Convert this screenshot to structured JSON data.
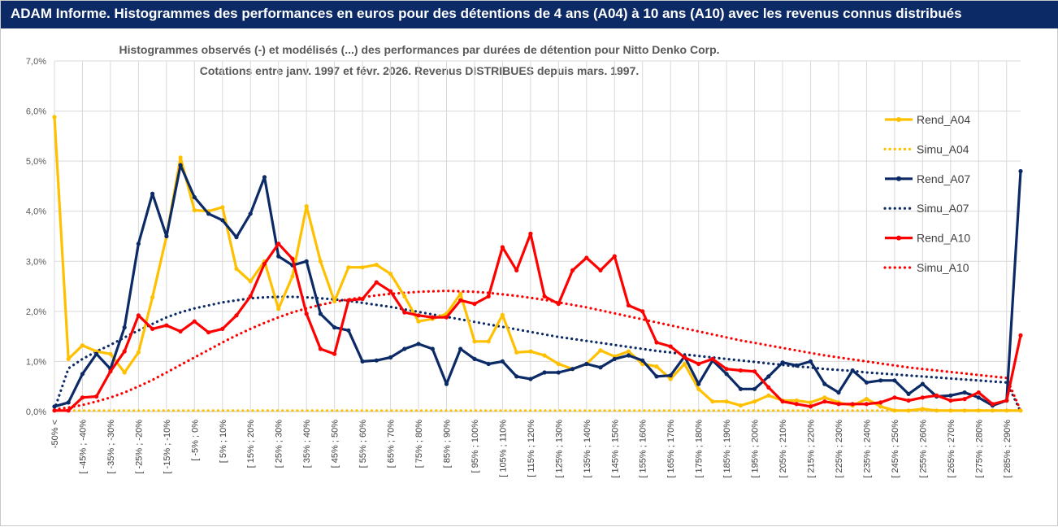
{
  "banner": {
    "title": "ADAM Informe. Histogrammes des performances en euros pour des détentions de 4 ans (A04) à 10 ans (A10) avec les revenus connus distribués"
  },
  "colors": {
    "banner_bg": "#0b2a66",
    "banner_text": "#ffffff",
    "A04": "#ffc000",
    "A07": "#0b2a66",
    "A10": "#ff0000",
    "grid": "#d9d9d9"
  },
  "chart_data": {
    "type": "line",
    "title": "Histogrammes observés (-) et modélisés (...) des performances par durées de détention pour Nitto Denko Corp.",
    "subtitle": "Cotations entre janv. 1997 et févr.  2026. Revenus DISTRIBUES depuis mars. 1997.",
    "xlabel": "",
    "ylabel": "",
    "ylim": [
      0,
      7
    ],
    "y_ticks": [
      0,
      1,
      2,
      3,
      4,
      5,
      6,
      7
    ],
    "y_tick_labels": [
      "0,0%",
      "1,0%",
      "2,0%",
      "3,0%",
      "4,0%",
      "5,0%",
      "6,0%",
      "7,0%"
    ],
    "grid": true,
    "legend_position": "top-right",
    "x_tick_labels": [
      "-50% <",
      "[ -45% ; -40%",
      "[ -35% ; -30%",
      "[ -25% ; -20%",
      "[ -15% ; -10%",
      "[ -5% ; 0%",
      "[ 5% ; 10%",
      "[ 15% ; 20%",
      "[ 25% ; 30%",
      "[ 35% ; 40%",
      "[ 45% ; 50%",
      "[ 55% ; 60%",
      "[ 65% ; 70%",
      "[ 75% ; 80%",
      "[ 85% ; 90%",
      "[ 95% ; 100%",
      "[ 105% ; 110%",
      "[ 115% ; 120%",
      "[ 125% ; 130%",
      "[ 135% ; 140%",
      "[ 145% ; 150%",
      "[ 155% ; 160%",
      "[ 165% ; 170%",
      "[ 175% ; 180%",
      "[ 185% ; 190%",
      "[ 195% ; 200%",
      "[ 205% ; 210%",
      "[ 215% ; 220%",
      "[ 225% ; 230%",
      "[ 235% ; 240%",
      "[ 245% ; 250%",
      "[ 255% ; 260%",
      "[ 265% ; 270%",
      "[ 275% ; 280%",
      "[ 285% ; 290%"
    ],
    "x_tick_label_every": 2,
    "series": [
      {
        "name": "Rend_A04",
        "kind": "observed",
        "color": "#ffc000",
        "values": [
          5.88,
          1.05,
          1.32,
          1.2,
          1.15,
          0.78,
          1.18,
          2.28,
          3.5,
          5.07,
          4.02,
          4.0,
          4.08,
          2.85,
          2.6,
          3.0,
          2.05,
          2.7,
          4.1,
          3.0,
          2.2,
          2.88,
          2.88,
          2.93,
          2.75,
          2.3,
          1.8,
          1.85,
          1.95,
          2.35,
          1.4,
          1.4,
          1.93,
          1.18,
          1.2,
          1.12,
          0.95,
          0.85,
          0.95,
          1.22,
          1.1,
          1.2,
          0.95,
          0.9,
          0.65,
          0.95,
          0.45,
          0.2,
          0.2,
          0.12,
          0.2,
          0.32,
          0.22,
          0.22,
          0.18,
          0.28,
          0.18,
          0.12,
          0.25,
          0.1,
          0.02,
          0.02,
          0.05,
          0.02,
          0.02,
          0.02,
          0.02,
          0.02,
          0.02,
          0.02
        ]
      },
      {
        "name": "Simu_A04",
        "kind": "model",
        "color": "#ffc000",
        "values": [
          0.02,
          0.02,
          0.02,
          0.02,
          0.02,
          0.02,
          0.02,
          0.02,
          0.02,
          0.02,
          0.02,
          0.02,
          0.02,
          0.02,
          0.02,
          0.02,
          0.02,
          0.02,
          0.02,
          0.02,
          0.02,
          0.02,
          0.02,
          0.02,
          0.02,
          0.02,
          0.02,
          0.02,
          0.02,
          0.02,
          0.02,
          0.02,
          0.02,
          0.02,
          0.02,
          0.02,
          0.02,
          0.02,
          0.02,
          0.02,
          0.02,
          0.02,
          0.02,
          0.02,
          0.02,
          0.02,
          0.02,
          0.02,
          0.02,
          0.02,
          0.02,
          0.02,
          0.02,
          0.02,
          0.02,
          0.02,
          0.02,
          0.02,
          0.02,
          0.02,
          0.02,
          0.02,
          0.02,
          0.02,
          0.02,
          0.02,
          0.02,
          0.02,
          0.02,
          0.02
        ]
      },
      {
        "name": "Rend_A07",
        "kind": "observed",
        "color": "#0b2a66",
        "values": [
          0.1,
          0.18,
          0.75,
          1.15,
          0.85,
          1.68,
          3.35,
          4.35,
          3.5,
          4.92,
          4.28,
          3.95,
          3.82,
          3.48,
          3.95,
          4.68,
          3.1,
          2.92,
          3.0,
          1.95,
          1.68,
          1.62,
          1.0,
          1.02,
          1.08,
          1.25,
          1.35,
          1.25,
          0.55,
          1.25,
          1.05,
          0.95,
          1.0,
          0.7,
          0.65,
          0.78,
          0.78,
          0.85,
          0.95,
          0.88,
          1.05,
          1.12,
          1.02,
          0.7,
          0.72,
          1.1,
          0.55,
          1.02,
          0.75,
          0.45,
          0.45,
          0.7,
          0.98,
          0.92,
          1.0,
          0.55,
          0.38,
          0.82,
          0.58,
          0.62,
          0.62,
          0.35,
          0.55,
          0.3,
          0.32,
          0.38,
          0.28,
          0.12,
          0.22,
          4.8
        ]
      },
      {
        "name": "Simu_A07",
        "kind": "model",
        "color": "#0b2a66",
        "values": [
          0.04,
          0.86,
          1.05,
          1.2,
          1.33,
          1.48,
          1.62,
          1.75,
          1.88,
          1.98,
          2.06,
          2.12,
          2.18,
          2.22,
          2.26,
          2.28,
          2.29,
          2.29,
          2.28,
          2.26,
          2.24,
          2.21,
          2.17,
          2.13,
          2.09,
          2.04,
          1.99,
          1.94,
          1.89,
          1.84,
          1.79,
          1.74,
          1.69,
          1.64,
          1.59,
          1.54,
          1.49,
          1.45,
          1.41,
          1.37,
          1.33,
          1.29,
          1.25,
          1.21,
          1.18,
          1.14,
          1.11,
          1.08,
          1.05,
          1.02,
          0.99,
          0.96,
          0.93,
          0.9,
          0.88,
          0.85,
          0.83,
          0.81,
          0.78,
          0.76,
          0.74,
          0.72,
          0.7,
          0.68,
          0.66,
          0.64,
          0.62,
          0.6,
          0.58,
          0.0
        ]
      },
      {
        "name": "Rend_A10",
        "kind": "observed",
        "color": "#ff0000",
        "values": [
          0.02,
          0.02,
          0.28,
          0.3,
          0.8,
          1.2,
          1.92,
          1.65,
          1.72,
          1.6,
          1.8,
          1.58,
          1.65,
          1.92,
          2.3,
          2.95,
          3.35,
          3.05,
          1.95,
          1.25,
          1.15,
          2.22,
          2.25,
          2.58,
          2.4,
          1.98,
          1.92,
          1.88,
          1.88,
          2.22,
          2.15,
          2.3,
          3.28,
          2.82,
          3.55,
          2.3,
          2.15,
          2.82,
          3.07,
          2.82,
          3.1,
          2.12,
          2.0,
          1.38,
          1.3,
          1.08,
          0.95,
          1.05,
          0.85,
          0.82,
          0.8,
          0.48,
          0.2,
          0.15,
          0.1,
          0.2,
          0.15,
          0.15,
          0.15,
          0.18,
          0.28,
          0.22,
          0.28,
          0.32,
          0.22,
          0.25,
          0.38,
          0.15,
          0.22,
          1.52
        ]
      },
      {
        "name": "Simu_A10",
        "kind": "model",
        "color": "#ff0000",
        "values": [
          0.04,
          0.08,
          0.13,
          0.2,
          0.28,
          0.38,
          0.5,
          0.63,
          0.78,
          0.93,
          1.08,
          1.23,
          1.38,
          1.52,
          1.65,
          1.77,
          1.88,
          1.98,
          2.06,
          2.13,
          2.19,
          2.24,
          2.28,
          2.32,
          2.35,
          2.37,
          2.39,
          2.4,
          2.41,
          2.4,
          2.39,
          2.37,
          2.34,
          2.31,
          2.27,
          2.23,
          2.18,
          2.13,
          2.08,
          2.02,
          1.96,
          1.9,
          1.84,
          1.78,
          1.72,
          1.66,
          1.6,
          1.54,
          1.48,
          1.42,
          1.37,
          1.32,
          1.27,
          1.22,
          1.17,
          1.12,
          1.08,
          1.04,
          1.0,
          0.96,
          0.92,
          0.88,
          0.85,
          0.82,
          0.79,
          0.76,
          0.73,
          0.7,
          0.67,
          0.02
        ]
      }
    ]
  }
}
